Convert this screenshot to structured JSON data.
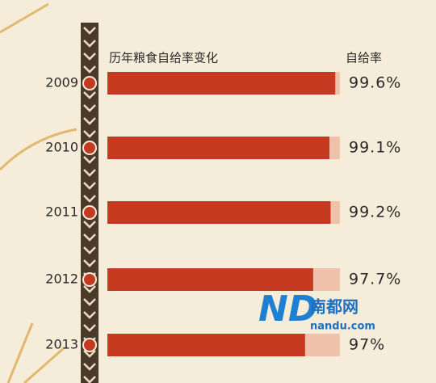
{
  "chart_data": {
    "type": "bar",
    "orientation": "horizontal",
    "title": "历年粮食自给率变化",
    "value_header": "自给率",
    "categories": [
      "2009",
      "2010",
      "2011",
      "2012",
      "2013"
    ],
    "values": [
      99.6,
      99.1,
      99.2,
      97.7,
      97
    ],
    "value_labels": [
      "99.6%",
      "99.1%",
      "99.2%",
      "97.7%",
      "97%"
    ],
    "color": "#c4391f",
    "track_color": "#f1c2ab",
    "xlim": [
      80,
      100
    ],
    "watermark": {
      "logo": "ND",
      "name": "南都网",
      "url": "nandu.com"
    }
  }
}
